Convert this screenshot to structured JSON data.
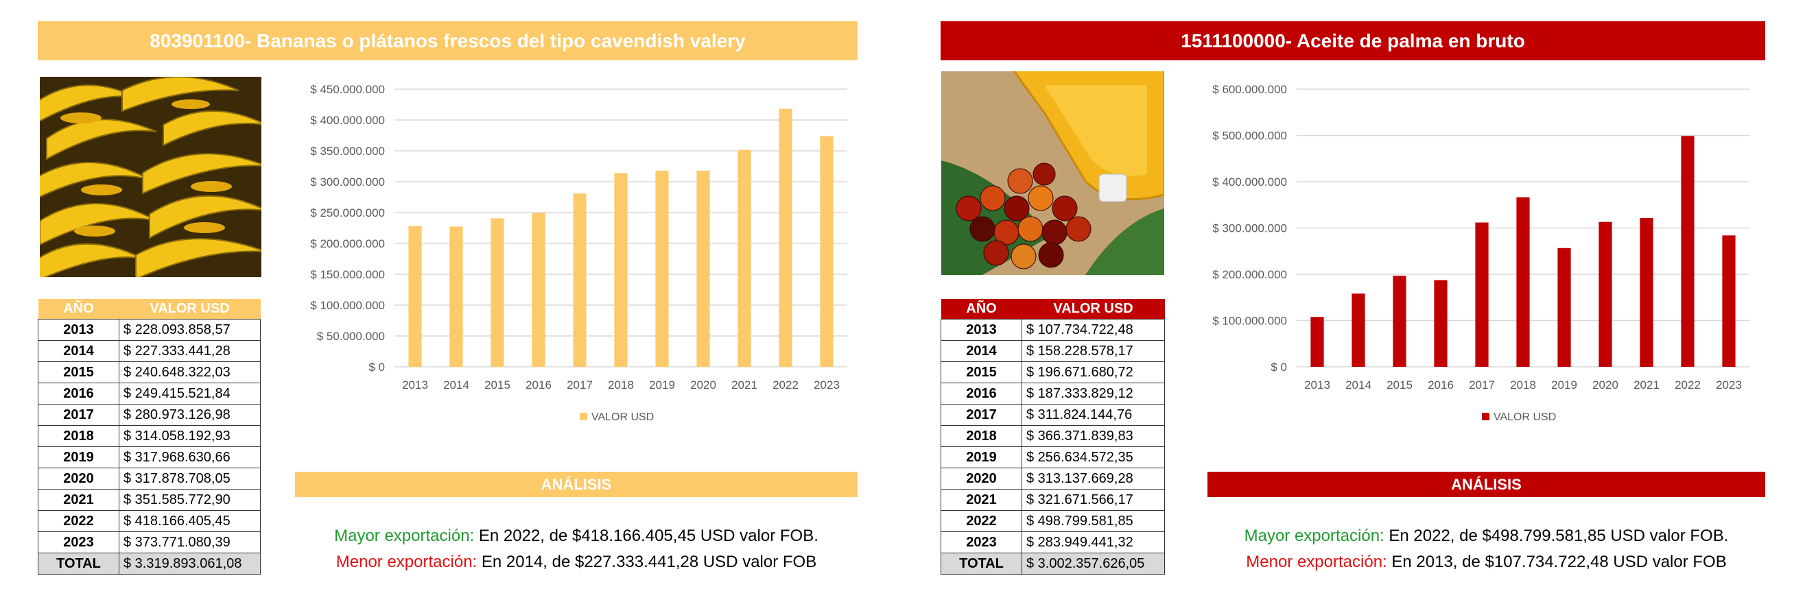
{
  "colors": {
    "yellow": "#fdca6a",
    "red": "#c00000",
    "grid": "#d9d9d9",
    "axis_text": "#595959"
  },
  "panels": [
    {
      "title": "803901100- Bananas o plátanos frescos del tipo cavendish valery",
      "photo": "bananas-photo",
      "table": {
        "headers": [
          "AÑO",
          "VALOR USD"
        ],
        "rows": [
          {
            "year": "2013",
            "value": "$ 228.093.858,57"
          },
          {
            "year": "2014",
            "value": "$ 227.333.441,28"
          },
          {
            "year": "2015",
            "value": "$ 240.648.322,03"
          },
          {
            "year": "2016",
            "value": "$ 249.415.521,84"
          },
          {
            "year": "2017",
            "value": "$ 280.973.126,98"
          },
          {
            "year": "2018",
            "value": "$ 314.058.192,93"
          },
          {
            "year": "2019",
            "value": "$ 317.968.630,66"
          },
          {
            "year": "2020",
            "value": "$ 317.878.708,05"
          },
          {
            "year": "2021",
            "value": "$ 351.585.772,90"
          },
          {
            "year": "2022",
            "value": "$ 418.166.405,45"
          },
          {
            "year": "2023",
            "value": "$ 373.771.080,39"
          }
        ],
        "total_label": "TOTAL",
        "total_value": "$ 3.319.893.061,08"
      },
      "analysis": {
        "heading": "ANÁLISIS",
        "max_label": "Mayor exportación:",
        "max_text": "En 2022, de $418.166.405,45 USD valor FOB.",
        "min_label": "Menor exportación:",
        "min_text": "En 2014, de $227.333.441,28 USD valor FOB"
      }
    },
    {
      "title": "1511100000- Aceite de palma en bruto",
      "photo": "palm-oil-photo",
      "table": {
        "headers": [
          "AÑO",
          "VALOR USD"
        ],
        "rows": [
          {
            "year": "2013",
            "value": "$ 107.734.722,48"
          },
          {
            "year": "2014",
            "value": "$ 158.228.578,17"
          },
          {
            "year": "2015",
            "value": "$ 196.671.680,72"
          },
          {
            "year": "2016",
            "value": "$ 187.333.829,12"
          },
          {
            "year": "2017",
            "value": "$ 311.824.144,76"
          },
          {
            "year": "2018",
            "value": "$ 366.371.839,83"
          },
          {
            "year": "2019",
            "value": "$ 256.634.572,35"
          },
          {
            "year": "2020",
            "value": "$ 313.137.669,28"
          },
          {
            "year": "2021",
            "value": "$ 321.671.566,17"
          },
          {
            "year": "2022",
            "value": "$ 498.799.581,85"
          },
          {
            "year": "2023",
            "value": "$ 283.949.441,32"
          }
        ],
        "total_label": "TOTAL",
        "total_value": "$ 3.002.357.626,05"
      },
      "analysis": {
        "heading": "ANÁLISIS",
        "max_label": "Mayor exportación:",
        "max_text": "En 2022, de $498.799.581,85 USD valor FOB.",
        "min_label": "Menor exportación:",
        "min_text": "En 2013, de $107.734.722,48 USD valor FOB"
      }
    }
  ],
  "chart_data": [
    {
      "type": "bar",
      "categories": [
        "2013",
        "2014",
        "2015",
        "2016",
        "2017",
        "2018",
        "2019",
        "2020",
        "2021",
        "2022",
        "2023"
      ],
      "series": [
        {
          "name": "VALOR USD",
          "values": [
            228093858.57,
            227333441.28,
            240648322.03,
            249415521.84,
            280973126.98,
            314058192.93,
            317968630.66,
            317878708.05,
            351585772.9,
            418166405.45,
            373771080.39
          ]
        }
      ],
      "yticks": [
        "$ 0",
        "$ 50.000.000",
        "$ 100.000.000",
        "$ 150.000.000",
        "$ 200.000.000",
        "$ 250.000.000",
        "$ 300.000.000",
        "$ 350.000.000",
        "$ 400.000.000",
        "$ 450.000.000"
      ],
      "ylim": [
        0,
        450000000
      ],
      "ystep": 50000000,
      "grid": true,
      "legend": "bottom",
      "color": "#fdca6a"
    },
    {
      "type": "bar",
      "categories": [
        "2013",
        "2014",
        "2015",
        "2016",
        "2017",
        "2018",
        "2019",
        "2020",
        "2021",
        "2022",
        "2023"
      ],
      "series": [
        {
          "name": "VALOR USD",
          "values": [
            107734722.48,
            158228578.17,
            196671680.72,
            187333829.12,
            311824144.76,
            366371839.83,
            256634572.35,
            313137669.28,
            321671566.17,
            498799581.85,
            283949441.32
          ]
        }
      ],
      "yticks": [
        "$ 0",
        "$ 100.000.000",
        "$ 200.000.000",
        "$ 300.000.000",
        "$ 400.000.000",
        "$ 500.000.000",
        "$ 600.000.000"
      ],
      "ylim": [
        0,
        600000000
      ],
      "ystep": 100000000,
      "grid": true,
      "legend": "bottom",
      "color": "#c00000"
    }
  ]
}
